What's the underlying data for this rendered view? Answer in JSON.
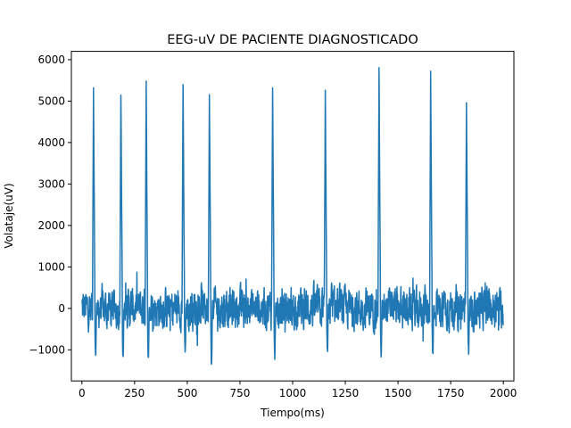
{
  "chart_data": {
    "type": "line",
    "title": "EEG-uV DE PACIENTE DIAGNOSTICADO",
    "xlabel": "Tiempo(ms)",
    "ylabel": "Volataje(uV)",
    "xlim": [
      -50,
      2050
    ],
    "ylim": [
      -1750,
      6200
    ],
    "xticks": [
      0,
      250,
      500,
      750,
      1000,
      1250,
      1500,
      1750,
      2000
    ],
    "yticks": [
      -1000,
      0,
      1000,
      2000,
      3000,
      4000,
      5000,
      6000
    ],
    "x_range": [
      0,
      2000
    ],
    "line_color": "#1f77b4",
    "grid": false,
    "legend": "none",
    "spikes": [
      {
        "x": 55,
        "peak": 5220,
        "trough": -1200
      },
      {
        "x": 185,
        "peak": 5240,
        "trough": -1180
      },
      {
        "x": 305,
        "peak": 5400,
        "trough": -1220
      },
      {
        "x": 480,
        "peak": 5440,
        "trough": -1050
      },
      {
        "x": 605,
        "peak": 5180,
        "trough": -1400
      },
      {
        "x": 905,
        "peak": 5400,
        "trough": -1150
      },
      {
        "x": 1155,
        "peak": 5200,
        "trough": -1050
      },
      {
        "x": 1410,
        "peak": 5780,
        "trough": -1180
      },
      {
        "x": 1655,
        "peak": 5700,
        "trough": -1100
      },
      {
        "x": 1825,
        "peak": 4950,
        "trough": -1050
      }
    ],
    "baseline": {
      "mean": 0,
      "noise_amplitude": 600
    }
  }
}
